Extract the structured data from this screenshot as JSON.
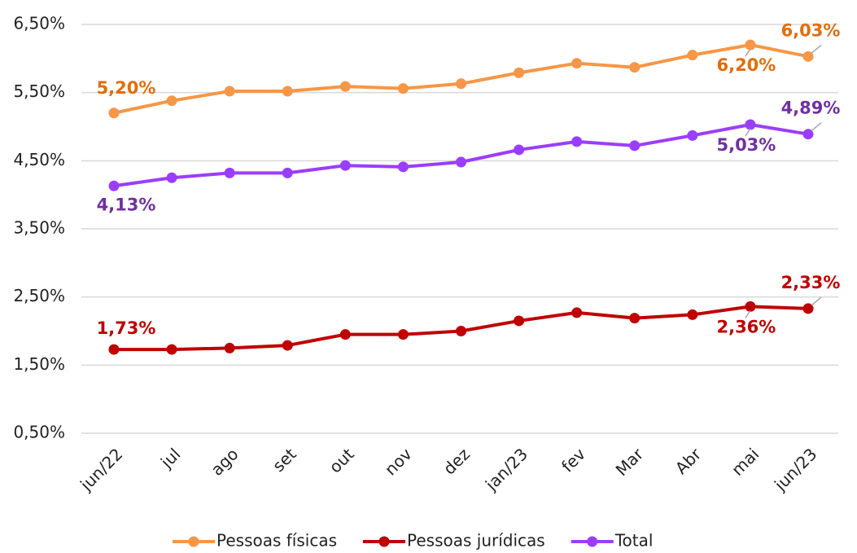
{
  "chart_data": {
    "type": "line",
    "categories": [
      "jun/22",
      "jul",
      "ago",
      "set",
      "out",
      "nov",
      "dez",
      "jan/23",
      "fev",
      "Mar",
      "Abr",
      "mai",
      "jun/23"
    ],
    "ylim": [
      0.5,
      6.5
    ],
    "yticks": [
      {
        "value": 0.5,
        "label": "0,50%"
      },
      {
        "value": 1.5,
        "label": "1,50%"
      },
      {
        "value": 2.5,
        "label": "2,50%"
      },
      {
        "value": 3.5,
        "label": "3,50%"
      },
      {
        "value": 4.5,
        "label": "4,50%"
      },
      {
        "value": 5.5,
        "label": "5,50%"
      },
      {
        "value": 6.5,
        "label": "6,50%"
      }
    ],
    "grid": true,
    "legend": "bottom",
    "series": [
      {
        "name": "Pessoas físicas",
        "color": "#F79646",
        "label_color": "#E46C0A",
        "values": [
          5.2,
          5.38,
          5.52,
          5.52,
          5.59,
          5.56,
          5.63,
          5.79,
          5.93,
          5.87,
          6.05,
          6.2,
          6.03
        ],
        "value_labels": [
          "5,20%",
          null,
          null,
          null,
          null,
          null,
          null,
          null,
          null,
          null,
          null,
          "6,20%",
          "6,03%"
        ]
      },
      {
        "name": "Pessoas jurídicas",
        "color": "#C00000",
        "label_color": "#C00000",
        "values": [
          1.73,
          1.73,
          1.75,
          1.79,
          1.95,
          1.95,
          2.0,
          2.15,
          2.27,
          2.19,
          2.24,
          2.36,
          2.33
        ],
        "value_labels": [
          "1,73%",
          null,
          null,
          null,
          null,
          null,
          null,
          null,
          null,
          null,
          null,
          "2,36%",
          "2,33%"
        ]
      },
      {
        "name": "Total",
        "color": "#9B3DFF",
        "label_color": "#7030A0",
        "values": [
          4.13,
          4.25,
          4.32,
          4.32,
          4.43,
          4.41,
          4.48,
          4.66,
          4.78,
          4.72,
          4.87,
          5.03,
          4.89
        ],
        "value_labels": [
          "4,13%",
          null,
          null,
          null,
          null,
          null,
          null,
          null,
          null,
          null,
          null,
          "5,03%",
          "4,89%"
        ]
      }
    ]
  }
}
